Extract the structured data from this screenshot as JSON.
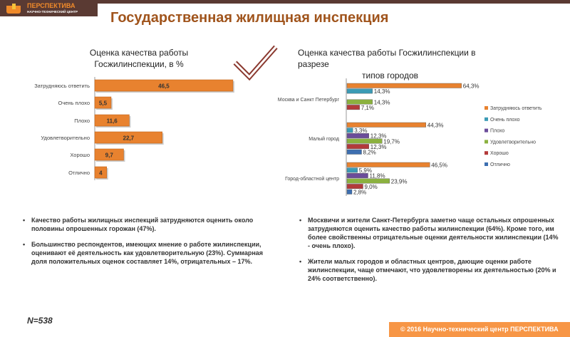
{
  "header": {
    "logo_name": "ПЕРСПЕКТИВА",
    "logo_sub": "НАУЧНО-ТЕХНИЧЕСКИЙ ЦЕНТР",
    "title": "Государственная жилищная инспекция"
  },
  "chart_data": [
    {
      "type": "bar",
      "orientation": "horizontal",
      "title": "Оценка качества работы Госжилинспекции, в %",
      "title_lines": [
        "Оценка качества работы",
        "Госжилинспекции, в %"
      ],
      "categories": [
        "Затрудняюсь ответить",
        "Очень плохо",
        "Плохо",
        "Удовлетворительно",
        "Хорошо",
        "Отлично"
      ],
      "values": [
        46.5,
        5.5,
        11.6,
        22.7,
        9.7,
        4
      ],
      "labels": [
        "46,5",
        "5,5",
        "11,6",
        "22,7",
        "9,7",
        "4"
      ],
      "color": "#e8822f"
    },
    {
      "type": "bar",
      "orientation": "horizontal",
      "title": "Оценка качества работы Госжилинспекции в разрезе типов городов",
      "title_lines": [
        "Оценка качества работы Госжилинспекции в разрезе",
        "типов городов"
      ],
      "categories": [
        "Москва и Санкт Петербург",
        "Малый город",
        "Город-областной центр"
      ],
      "series": [
        {
          "name": "Затрудняюсь ответить",
          "color": "#e8822f",
          "values": [
            64.3,
            44.3,
            46.5
          ],
          "labels": [
            "64,3%",
            "44,3%",
            "46,5%"
          ]
        },
        {
          "name": "Очень плохо",
          "color": "#3b9bb5",
          "values": [
            14.3,
            3.3,
            5.9
          ],
          "labels": [
            "14,3%",
            "3,3%",
            "5,9%"
          ]
        },
        {
          "name": "Плохо",
          "color": "#6b4c9a",
          "values": [
            0,
            12.3,
            11.8
          ],
          "labels": [
            "",
            "12,3%",
            "11,8%"
          ]
        },
        {
          "name": "Удовлетворительно",
          "color": "#8bb13f",
          "values": [
            14.3,
            19.7,
            23.9
          ],
          "labels": [
            "14,3%",
            "19,7%",
            "23,9%"
          ]
        },
        {
          "name": "Хорошо",
          "color": "#b33a3a",
          "values": [
            7.1,
            12.3,
            9.0
          ],
          "labels": [
            "7,1%",
            "12,3%",
            "9,0%"
          ]
        },
        {
          "name": "Отлично",
          "color": "#3d6fb0",
          "values": [
            0,
            8.2,
            2.8
          ],
          "labels": [
            "",
            "8,2%",
            "2,8%"
          ]
        }
      ],
      "legend": "right"
    }
  ],
  "left_text": [
    "Качество работы жилищных инспекций затрудняются оценить около половины опрошенных горожан (47%).",
    "Большинство респондентов, имеющих мнение о работе жилинспекции, оценивают её деятельность как удовлетворительную (23%). Суммарная доля положительных оценок составляет 14%, отрицательных – 17%."
  ],
  "right_text": [
    "Москвичи и жители Санкт-Петербурга заметно чаще остальных опрошенных затрудняются оценить качество работы жилинспекции (64%). Кроме того, им более свойственны отрицательные оценки деятельности жилинспекции (14% - очень плохо).",
    "Жители малых городов и областных центров, дающие оценки работе жилинспекции, чаще отмечают, что удовлетворены их деятельностью (20% и 24% соответственно)."
  ],
  "sample": "N=538",
  "footer": "© 2016 Научно-технический центр ПЕРСПЕКТИВА"
}
